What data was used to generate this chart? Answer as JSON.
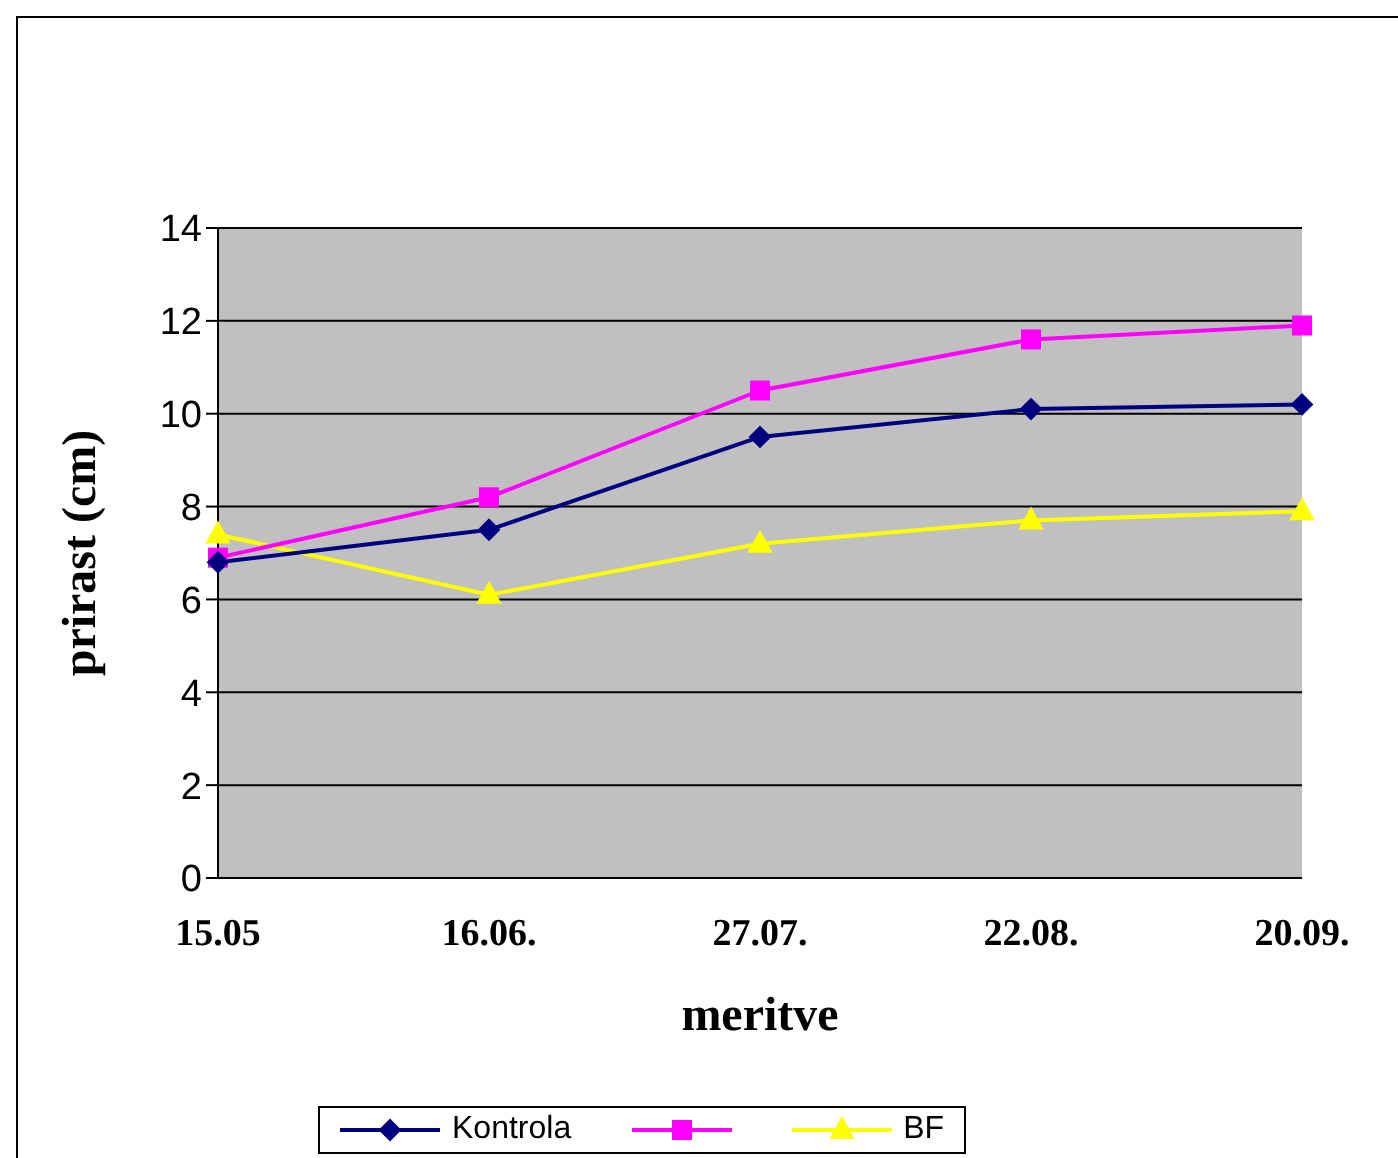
{
  "chart_data": {
    "type": "line",
    "xlabel": "meritve",
    "ylabel": "prirast  (cm)",
    "categories": [
      "15.05",
      "16.06.",
      "27.07.",
      "22.08.",
      "20.09."
    ],
    "series": [
      {
        "name": "Kontrola",
        "color": "#000080",
        "marker": "diamond",
        "values": [
          6.8,
          7.5,
          9.5,
          10.1,
          10.2
        ]
      },
      {
        "color": "#ff00ff",
        "marker": "square",
        "values": [
          6.9,
          8.2,
          10.5,
          11.6,
          11.9
        ]
      },
      {
        "name": "BF",
        "color": "#ffff00",
        "marker": "triangle",
        "values": [
          7.4,
          6.1,
          7.2,
          7.7,
          7.9
        ]
      }
    ],
    "ylim": [
      0,
      14
    ],
    "yticks": [
      0,
      2,
      4,
      6,
      8,
      10,
      12,
      14
    ],
    "grid": "y",
    "legend": "bottom"
  }
}
